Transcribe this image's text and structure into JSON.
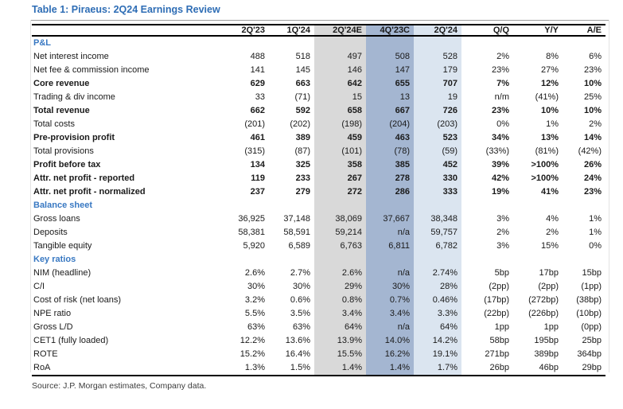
{
  "title": "Table 1: Piraeus: 2Q24 Earnings Review",
  "source": "Source: J.P. Morgan estimates, Company data.",
  "colors": {
    "title_blue": "#2e6db5",
    "section_blue": "#3878c2",
    "estimate_column_bg": "#d9d9d9",
    "consensus_column_bg": "#a4b6d1",
    "actual_column_bg": "#dbe5f0"
  },
  "chart_data": {
    "type": "table",
    "title": "Table 1: Piraeus: 2Q24 Earnings Review",
    "legend_note": "highlighted columns: 2Q'24E estimate (gray), 4Q'23C consensus (blue), 2Q'24 actual (light blue)"
  },
  "table": {
    "columns": [
      "",
      "2Q'23",
      "1Q'24",
      "2Q'24E",
      "4Q'23C",
      "2Q'24",
      "Q/Q",
      "Y/Y",
      "A/E"
    ],
    "sections": [
      {
        "label": "P&L",
        "rows": [
          {
            "label": "Net interest income",
            "bold": false,
            "values": [
              "488",
              "518",
              "497",
              "508",
              "528",
              "2%",
              "8%",
              "6%"
            ]
          },
          {
            "label": "Net fee & commission income",
            "bold": false,
            "values": [
              "141",
              "145",
              "146",
              "147",
              "179",
              "23%",
              "27%",
              "23%"
            ]
          },
          {
            "label": "Core revenue",
            "bold": true,
            "values": [
              "629",
              "663",
              "642",
              "655",
              "707",
              "7%",
              "12%",
              "10%"
            ]
          },
          {
            "label": "Trading & div income",
            "bold": false,
            "values": [
              "33",
              "(71)",
              "15",
              "13",
              "19",
              "n/m",
              "(41%)",
              "25%"
            ]
          },
          {
            "label": "Total revenue",
            "bold": true,
            "values": [
              "662",
              "592",
              "658",
              "667",
              "726",
              "23%",
              "10%",
              "10%"
            ]
          },
          {
            "label": "Total costs",
            "bold": false,
            "values": [
              "(201)",
              "(202)",
              "(198)",
              "(204)",
              "(203)",
              "0%",
              "1%",
              "2%"
            ]
          },
          {
            "label": "Pre-provision profit",
            "bold": true,
            "values": [
              "461",
              "389",
              "459",
              "463",
              "523",
              "34%",
              "13%",
              "14%"
            ]
          },
          {
            "label": "Total provisions",
            "bold": false,
            "values": [
              "(315)",
              "(87)",
              "(101)",
              "(78)",
              "(59)",
              "(33%)",
              "(81%)",
              "(42%)"
            ]
          },
          {
            "label": "Profit before tax",
            "bold": true,
            "values": [
              "134",
              "325",
              "358",
              "385",
              "452",
              "39%",
              ">100%",
              "26%"
            ]
          },
          {
            "label": "Attr. net profit - reported",
            "bold": true,
            "values": [
              "119",
              "233",
              "267",
              "278",
              "330",
              "42%",
              ">100%",
              "24%"
            ]
          },
          {
            "label": "Attr. net profit - normalized",
            "bold": true,
            "values": [
              "237",
              "279",
              "272",
              "286",
              "333",
              "19%",
              "41%",
              "23%"
            ]
          }
        ]
      },
      {
        "label": "Balance sheet",
        "rows": [
          {
            "label": "Gross loans",
            "bold": false,
            "values": [
              "36,925",
              "37,148",
              "38,069",
              "37,667",
              "38,348",
              "3%",
              "4%",
              "1%"
            ]
          },
          {
            "label": "Deposits",
            "bold": false,
            "values": [
              "58,381",
              "58,591",
              "59,214",
              "n/a",
              "59,757",
              "2%",
              "2%",
              "1%"
            ]
          },
          {
            "label": "Tangible equity",
            "bold": false,
            "values": [
              "5,920",
              "6,589",
              "6,763",
              "6,811",
              "6,782",
              "3%",
              "15%",
              "0%"
            ]
          }
        ]
      },
      {
        "label": "Key ratios",
        "rows": [
          {
            "label": "NIM (headline)",
            "bold": false,
            "values": [
              "2.6%",
              "2.7%",
              "2.6%",
              "n/a",
              "2.74%",
              "5bp",
              "17bp",
              "15bp"
            ]
          },
          {
            "label": "C/I",
            "bold": false,
            "values": [
              "30%",
              "30%",
              "29%",
              "30%",
              "28%",
              "(2pp)",
              "(2pp)",
              "(1pp)"
            ]
          },
          {
            "label": "Cost of risk (net loans)",
            "bold": false,
            "values": [
              "3.2%",
              "0.6%",
              "0.8%",
              "0.7%",
              "0.46%",
              "(17bp)",
              "(272bp)",
              "(38bp)"
            ]
          },
          {
            "label": "NPE ratio",
            "bold": false,
            "values": [
              "5.5%",
              "3.5%",
              "3.4%",
              "3.4%",
              "3.3%",
              "(22bp)",
              "(226bp)",
              "(10bp)"
            ]
          },
          {
            "label": "Gross L/D",
            "bold": false,
            "values": [
              "63%",
              "63%",
              "64%",
              "n/a",
              "64%",
              "1pp",
              "1pp",
              "(0pp)"
            ]
          },
          {
            "label": "CET1 (fully loaded)",
            "bold": false,
            "values": [
              "12.2%",
              "13.6%",
              "13.9%",
              "14.0%",
              "14.2%",
              "58bp",
              "195bp",
              "25bp"
            ]
          },
          {
            "label": "ROTE",
            "bold": false,
            "values": [
              "15.2%",
              "16.4%",
              "15.5%",
              "16.2%",
              "19.1%",
              "271bp",
              "389bp",
              "364bp"
            ]
          },
          {
            "label": "RoA",
            "bold": false,
            "values": [
              "1.3%",
              "1.5%",
              "1.4%",
              "1.4%",
              "1.7%",
              "26bp",
              "46bp",
              "29bp"
            ]
          }
        ]
      }
    ]
  }
}
